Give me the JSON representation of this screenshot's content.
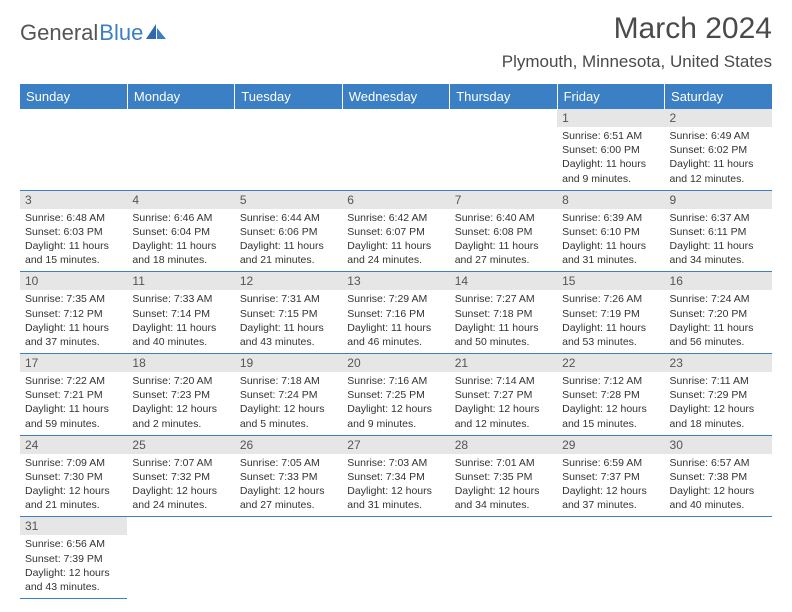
{
  "logo": {
    "general": "General",
    "blue": "Blue"
  },
  "colors": {
    "header_bg": "#3b7fc4",
    "header_fg": "#ffffff",
    "daynum_bg": "#e6e6e6",
    "text": "#333333",
    "rule": "#3b7fc4",
    "logo_gray": "#555555",
    "logo_blue": "#3b7fc4"
  },
  "fonts": {
    "body": "Arial",
    "title_size_pt": 30,
    "location_size_pt": 17,
    "header_size_pt": 13,
    "daynum_size_pt": 12,
    "body_size_pt": 10.5
  },
  "title": "March 2024",
  "location": "Plymouth, Minnesota, United States",
  "dayHeaders": [
    "Sunday",
    "Monday",
    "Tuesday",
    "Wednesday",
    "Thursday",
    "Friday",
    "Saturday"
  ],
  "grid": {
    "rows": 6,
    "cols": 7,
    "startOffset": 5,
    "daysInMonth": 31
  },
  "days": {
    "1": {
      "sunrise": "6:51 AM",
      "sunset": "6:00 PM",
      "daylight": "11 hours and 9 minutes."
    },
    "2": {
      "sunrise": "6:49 AM",
      "sunset": "6:02 PM",
      "daylight": "11 hours and 12 minutes."
    },
    "3": {
      "sunrise": "6:48 AM",
      "sunset": "6:03 PM",
      "daylight": "11 hours and 15 minutes."
    },
    "4": {
      "sunrise": "6:46 AM",
      "sunset": "6:04 PM",
      "daylight": "11 hours and 18 minutes."
    },
    "5": {
      "sunrise": "6:44 AM",
      "sunset": "6:06 PM",
      "daylight": "11 hours and 21 minutes."
    },
    "6": {
      "sunrise": "6:42 AM",
      "sunset": "6:07 PM",
      "daylight": "11 hours and 24 minutes."
    },
    "7": {
      "sunrise": "6:40 AM",
      "sunset": "6:08 PM",
      "daylight": "11 hours and 27 minutes."
    },
    "8": {
      "sunrise": "6:39 AM",
      "sunset": "6:10 PM",
      "daylight": "11 hours and 31 minutes."
    },
    "9": {
      "sunrise": "6:37 AM",
      "sunset": "6:11 PM",
      "daylight": "11 hours and 34 minutes."
    },
    "10": {
      "sunrise": "7:35 AM",
      "sunset": "7:12 PM",
      "daylight": "11 hours and 37 minutes."
    },
    "11": {
      "sunrise": "7:33 AM",
      "sunset": "7:14 PM",
      "daylight": "11 hours and 40 minutes."
    },
    "12": {
      "sunrise": "7:31 AM",
      "sunset": "7:15 PM",
      "daylight": "11 hours and 43 minutes."
    },
    "13": {
      "sunrise": "7:29 AM",
      "sunset": "7:16 PM",
      "daylight": "11 hours and 46 minutes."
    },
    "14": {
      "sunrise": "7:27 AM",
      "sunset": "7:18 PM",
      "daylight": "11 hours and 50 minutes."
    },
    "15": {
      "sunrise": "7:26 AM",
      "sunset": "7:19 PM",
      "daylight": "11 hours and 53 minutes."
    },
    "16": {
      "sunrise": "7:24 AM",
      "sunset": "7:20 PM",
      "daylight": "11 hours and 56 minutes."
    },
    "17": {
      "sunrise": "7:22 AM",
      "sunset": "7:21 PM",
      "daylight": "11 hours and 59 minutes."
    },
    "18": {
      "sunrise": "7:20 AM",
      "sunset": "7:23 PM",
      "daylight": "12 hours and 2 minutes."
    },
    "19": {
      "sunrise": "7:18 AM",
      "sunset": "7:24 PM",
      "daylight": "12 hours and 5 minutes."
    },
    "20": {
      "sunrise": "7:16 AM",
      "sunset": "7:25 PM",
      "daylight": "12 hours and 9 minutes."
    },
    "21": {
      "sunrise": "7:14 AM",
      "sunset": "7:27 PM",
      "daylight": "12 hours and 12 minutes."
    },
    "22": {
      "sunrise": "7:12 AM",
      "sunset": "7:28 PM",
      "daylight": "12 hours and 15 minutes."
    },
    "23": {
      "sunrise": "7:11 AM",
      "sunset": "7:29 PM",
      "daylight": "12 hours and 18 minutes."
    },
    "24": {
      "sunrise": "7:09 AM",
      "sunset": "7:30 PM",
      "daylight": "12 hours and 21 minutes."
    },
    "25": {
      "sunrise": "7:07 AM",
      "sunset": "7:32 PM",
      "daylight": "12 hours and 24 minutes."
    },
    "26": {
      "sunrise": "7:05 AM",
      "sunset": "7:33 PM",
      "daylight": "12 hours and 27 minutes."
    },
    "27": {
      "sunrise": "7:03 AM",
      "sunset": "7:34 PM",
      "daylight": "12 hours and 31 minutes."
    },
    "28": {
      "sunrise": "7:01 AM",
      "sunset": "7:35 PM",
      "daylight": "12 hours and 34 minutes."
    },
    "29": {
      "sunrise": "6:59 AM",
      "sunset": "7:37 PM",
      "daylight": "12 hours and 37 minutes."
    },
    "30": {
      "sunrise": "6:57 AM",
      "sunset": "7:38 PM",
      "daylight": "12 hours and 40 minutes."
    },
    "31": {
      "sunrise": "6:56 AM",
      "sunset": "7:39 PM",
      "daylight": "12 hours and 43 minutes."
    }
  },
  "labels": {
    "sunrise": "Sunrise:",
    "sunset": "Sunset:",
    "daylight": "Daylight:"
  }
}
